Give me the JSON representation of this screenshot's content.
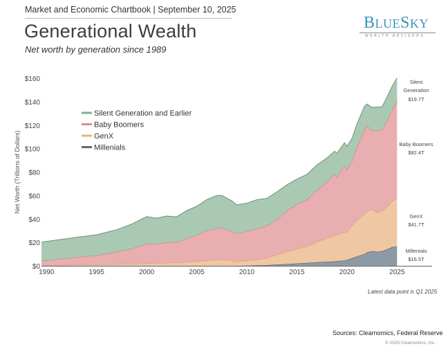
{
  "header": {
    "top_line": "Market and Economic Chartbook | September 10, 2025",
    "title": "Generational Wealth",
    "subtitle": "Net worth by generation since 1989"
  },
  "logo": {
    "name_big1": "B",
    "name_small1": "LUE",
    "name_big2": "S",
    "name_small2": "KY",
    "tagline": "WEALTH ADVISORS",
    "color": "#3a93b8"
  },
  "footer": {
    "note": "Latest data point is Q1 2025",
    "sources": "Sources: Clearnomics, Federal Reserve",
    "copyright": "© 2025 Clearnomics, Inc."
  },
  "chart_data": {
    "type": "area",
    "stacked": true,
    "title": "Generational Wealth",
    "subtitle": "Net worth by generation since 1989",
    "xlabel": "",
    "ylabel": "Net Worth (Trillions of Dollars)",
    "xlim": [
      1989.5,
      2028.5
    ],
    "ylim": [
      0,
      160
    ],
    "x_ticks": [
      "1990",
      "1995",
      "2000",
      "2005",
      "2010",
      "2015",
      "2020",
      "2025"
    ],
    "x_tick_values": [
      1990,
      1995,
      2000,
      2005,
      2010,
      2015,
      2020,
      2025
    ],
    "y_ticks": [
      "$0",
      "$20",
      "$40",
      "$60",
      "$80",
      "$100",
      "$120",
      "$140",
      "$160"
    ],
    "y_tick_values": [
      0,
      20,
      40,
      60,
      80,
      100,
      120,
      140,
      160
    ],
    "grid": false,
    "legend_position": "top-left",
    "x": [
      1989.5,
      1991,
      1993,
      1995,
      1997,
      1998.5,
      2000,
      2001,
      2002,
      2003,
      2004,
      2005,
      2006,
      2007,
      2007.5,
      2008.5,
      2009,
      2010,
      2011,
      2012,
      2013,
      2014,
      2015,
      2016,
      2017,
      2018,
      2018.75,
      2019,
      2019.75,
      2020,
      2020.5,
      2021,
      2021.75,
      2022,
      2022.5,
      2023,
      2023.5,
      2024,
      2024.5,
      2025
    ],
    "series": [
      {
        "name": "Millenials",
        "color": "#8c9aa6",
        "line_color": "#3f4a55",
        "values": [
          0,
          0,
          0,
          0,
          0,
          0,
          0,
          0,
          0,
          0,
          0,
          0,
          0,
          0,
          0,
          0,
          0,
          0.2,
          0.4,
          0.6,
          1.0,
          1.5,
          2.0,
          2.5,
          3.0,
          3.5,
          3.8,
          4.0,
          4.5,
          5.0,
          6.5,
          8.0,
          10.0,
          11.5,
          12.5,
          12.0,
          12.5,
          14.0,
          16.0,
          16.5
        ]
      },
      {
        "name": "GenX",
        "color": "#efc7a3",
        "line_color": "#d99a63",
        "values": [
          0.3,
          0.5,
          0.8,
          1.0,
          1.3,
          1.6,
          2.0,
          2.2,
          2.5,
          2.8,
          3.2,
          3.8,
          4.5,
          5.0,
          5.5,
          4.5,
          3.5,
          4.2,
          5.0,
          6.0,
          8.5,
          10.5,
          12.5,
          14.0,
          17.5,
          20.0,
          22.0,
          22.5,
          24.0,
          24.0,
          28.0,
          31.0,
          34.0,
          35.0,
          36.0,
          33.5,
          34.5,
          36.5,
          39.0,
          41.7
        ]
      },
      {
        "name": "Baby Boomers",
        "color": "#e8aeb0",
        "line_color": "#c9777c",
        "values": [
          4.0,
          5.0,
          6.5,
          8.0,
          10.5,
          13.0,
          17.0,
          16.5,
          17.5,
          17.5,
          20.0,
          22.5,
          25.5,
          27.0,
          27.0,
          25.0,
          24.0,
          25.0,
          26.5,
          27.5,
          30.0,
          35.0,
          38.0,
          40.0,
          44.0,
          48.0,
          53.0,
          49.0,
          57.0,
          53.0,
          55.0,
          62.0,
          72.0,
          73.0,
          67.0,
          70.0,
          68.5,
          73.0,
          78.0,
          82.4
        ]
      },
      {
        "name": "Silent Generation and Earlier",
        "color": "#a9c9b3",
        "line_color": "#6f8e78",
        "values": [
          16.0,
          16.5,
          17.0,
          17.5,
          19.0,
          21.0,
          23.0,
          22.0,
          22.5,
          21.5,
          24.0,
          24.5,
          26.5,
          28.0,
          27.5,
          26.0,
          24.5,
          24.0,
          24.5,
          23.5,
          23.5,
          22.0,
          21.5,
          21.5,
          21.5,
          20.5,
          19.0,
          20.5,
          19.5,
          20.0,
          19.0,
          20.0,
          20.0,
          18.5,
          19.5,
          20.0,
          20.0,
          20.5,
          20.0,
          19.7
        ]
      }
    ],
    "end_labels": [
      {
        "series": "Silent Generation and Earlier",
        "line1": "Silent",
        "line2": "Generation",
        "value": "$19.7T"
      },
      {
        "series": "Baby Boomers",
        "line1": "Baby Boomers",
        "line2": "",
        "value": "$82.4T"
      },
      {
        "series": "GenX",
        "line1": "GenX",
        "line2": "",
        "value": "$41.7T"
      },
      {
        "series": "Millenials",
        "line1": "Millenials",
        "line2": "",
        "value": "$16.5T"
      }
    ],
    "legend": [
      {
        "label": "Silent Generation and Earlier",
        "color": "#7fb092"
      },
      {
        "label": "Baby Boomers",
        "color": "#dd8c91"
      },
      {
        "label": "GenX",
        "color": "#e9b07c"
      },
      {
        "label": "Millenials",
        "color": "#5f6b76"
      }
    ]
  }
}
